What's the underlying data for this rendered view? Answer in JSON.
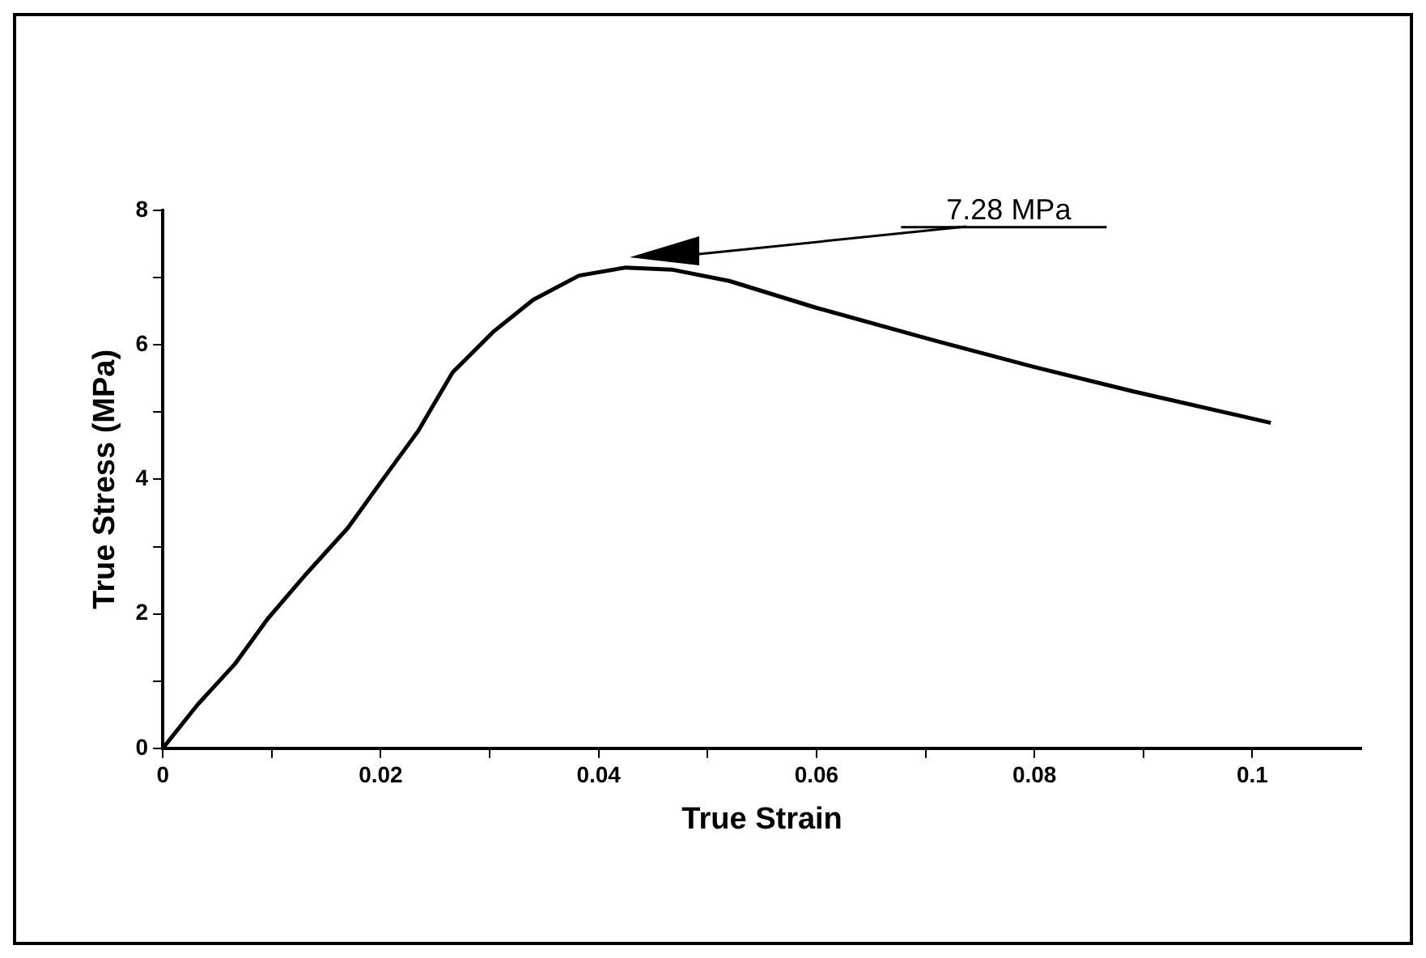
{
  "chart_data": {
    "type": "line",
    "xlabel": "True Strain",
    "ylabel": "True Stress (MPa)",
    "series": [
      {
        "color": "#000000",
        "x": [
          0,
          0.0032,
          0.0066,
          0.0096,
          0.0132,
          0.017,
          0.0202,
          0.0234,
          0.0266,
          0.0303,
          0.034,
          0.0382,
          0.0425,
          0.0467,
          0.052,
          0.06,
          0.0707,
          0.08,
          0.089,
          0.1017
        ],
        "values": [
          0,
          0.65,
          1.25,
          1.92,
          2.6,
          3.28,
          4.0,
          4.71,
          5.59,
          6.19,
          6.67,
          7.03,
          7.15,
          7.12,
          6.95,
          6.55,
          6.07,
          5.67,
          5.31,
          4.84
        ]
      }
    ],
    "xlim": [
      0,
      0.11
    ],
    "xticks": [
      0,
      {
        "value": 0.01,
        "label": null
      },
      0.02,
      {
        "value": 0.03,
        "label": null
      },
      0.04,
      {
        "value": 0.05,
        "label": null
      },
      0.06,
      {
        "value": 0.07,
        "label": null
      },
      0.08,
      {
        "value": 0.09,
        "label": null
      },
      0.1
    ],
    "ylim": [
      0,
      8
    ],
    "yticks": [
      0,
      {
        "value": 1,
        "label": null
      },
      2,
      {
        "value": 3,
        "label": null
      },
      4,
      {
        "value": 5,
        "label": null
      },
      6,
      {
        "value": 7,
        "label": null
      },
      8
    ],
    "annotations": [
      "7.28 MPa"
    ],
    "grid": false,
    "legend": false,
    "marker": "none",
    "line_style": "solid"
  }
}
